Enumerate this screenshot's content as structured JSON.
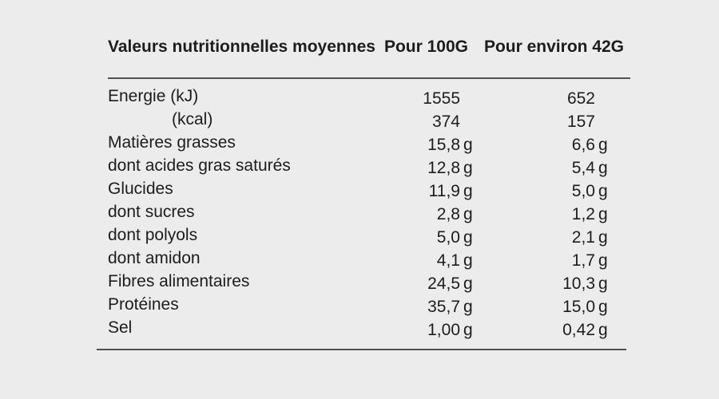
{
  "page": {
    "background_color": "#ececec",
    "text_color": "#1d1d1d",
    "rule_color": "#515151"
  },
  "chart_data": {
    "type": "table",
    "title": "Valeurs nutritionnelles moyennes",
    "columns": [
      "Valeurs nutritionnelles moyennes",
      "Pour 100G",
      "Pour environ 42G"
    ],
    "rows": [
      [
        "Energie (kJ)",
        "1555",
        "652"
      ],
      [
        "(kcal)",
        "374",
        "157"
      ],
      [
        "Matières grasses",
        "15,8 g",
        "6,6 g"
      ],
      [
        "dont acides gras saturés",
        "12,8 g",
        "5,4 g"
      ],
      [
        "Glucides",
        "11,9 g",
        "5,0 g"
      ],
      [
        "dont sucres",
        "2,8 g",
        "1,2 g"
      ],
      [
        "dont polyols",
        "5,0 g",
        "2,1 g"
      ],
      [
        "dont amidon",
        "4,1 g",
        "1,7 g"
      ],
      [
        "Fibres alimentaires",
        "24,5 g",
        "10,3 g"
      ],
      [
        "Protéines",
        "35,7 g",
        "15,0 g"
      ],
      [
        "Sel",
        "1,00 g",
        "0,42 g"
      ]
    ],
    "indented_rows": [
      1
    ],
    "unit": "g",
    "layout": {
      "grid": "horizontal rules above first row and below last row only",
      "header_alignment": [
        "left",
        "right",
        "right"
      ],
      "value_alignment": "right",
      "legend": "none"
    }
  }
}
